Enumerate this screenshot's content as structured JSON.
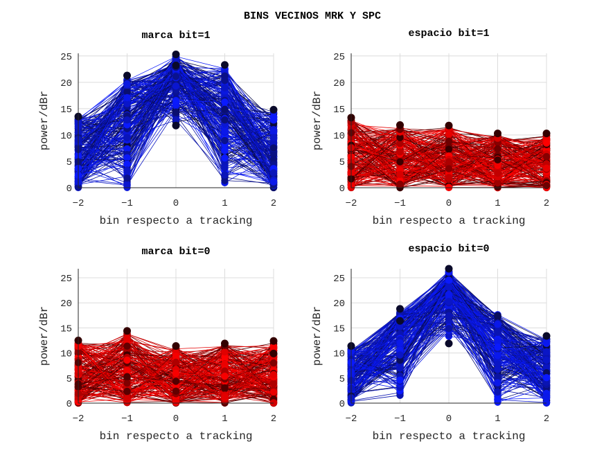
{
  "figure": {
    "suptitle": "BINS VECINOS MRK Y SPC"
  },
  "chart_data": [
    {
      "type": "line",
      "title": "marca bit=1",
      "xlabel": "bin respecto a tracking",
      "ylabel": "power/dBr",
      "x": [
        -2,
        -1,
        0,
        1,
        2
      ],
      "xticks": [
        "-2",
        "-1",
        "0",
        "1",
        "2"
      ],
      "ylim": [
        0,
        25.5
      ],
      "yticks": [
        "0",
        "5",
        "10",
        "15",
        "20",
        "25"
      ],
      "grid": true,
      "color_scheme": "blue",
      "colors": {
        "light": "#0a1aff",
        "dark": "#0a0a2a"
      },
      "trace_count": 220,
      "per_bin_range": [
        [
          0,
          13.5
        ],
        [
          0,
          21.3
        ],
        [
          11.8,
          25.3
        ],
        [
          0,
          23.3
        ],
        [
          0,
          14.8
        ]
      ],
      "highlight_points": [
        {
          "x": 0,
          "y": 25.3
        },
        {
          "x": 1,
          "y": 23.3
        },
        {
          "x": -1,
          "y": 21.3
        },
        {
          "x": 0,
          "y": 23.2
        },
        {
          "x": 0,
          "y": 11.8
        },
        {
          "x": 2,
          "y": 14.8
        },
        {
          "x": -2,
          "y": 13.5
        }
      ]
    },
    {
      "type": "line",
      "title": "espacio bit=1",
      "xlabel": "bin respecto a tracking",
      "ylabel": "power/dBr",
      "x": [
        -2,
        -1,
        0,
        1,
        2
      ],
      "xticks": [
        "-2",
        "-1",
        "0",
        "1",
        "2"
      ],
      "ylim": [
        0,
        25.5
      ],
      "yticks": [
        "0",
        "5",
        "10",
        "15",
        "20",
        "25"
      ],
      "grid": true,
      "color_scheme": "red",
      "colors": {
        "light": "#ff0000",
        "dark": "#330000"
      },
      "trace_count": 220,
      "per_bin_range": [
        [
          0,
          13.3
        ],
        [
          0,
          11.9
        ],
        [
          0,
          11.8
        ],
        [
          0,
          10.3
        ],
        [
          0,
          10.3
        ]
      ],
      "highlight_points": [
        {
          "x": -2,
          "y": 13.3
        },
        {
          "x": -1,
          "y": 11.9
        },
        {
          "x": 0,
          "y": 11.8
        },
        {
          "x": 1,
          "y": 10.3
        },
        {
          "x": 2,
          "y": 10.3
        }
      ]
    },
    {
      "type": "line",
      "title": "marca bit=0",
      "xlabel": "bin respecto a tracking",
      "ylabel": "power/dBr",
      "x": [
        -2,
        -1,
        0,
        1,
        2
      ],
      "xticks": [
        "-2",
        "-1",
        "0",
        "1",
        "2"
      ],
      "ylim": [
        0,
        26.8
      ],
      "yticks": [
        "0",
        "5",
        "10",
        "15",
        "20",
        "25"
      ],
      "grid": true,
      "color_scheme": "red",
      "colors": {
        "light": "#ff0000",
        "dark": "#330000"
      },
      "trace_count": 220,
      "per_bin_range": [
        [
          0,
          12.5
        ],
        [
          0,
          14.4
        ],
        [
          0,
          11.4
        ],
        [
          0,
          11.9
        ],
        [
          0,
          12.4
        ]
      ],
      "highlight_points": [
        {
          "x": -1,
          "y": 14.4
        },
        {
          "x": -2,
          "y": 12.5
        },
        {
          "x": 2,
          "y": 12.4
        },
        {
          "x": 1,
          "y": 11.9
        },
        {
          "x": 0,
          "y": 11.4
        },
        {
          "x": 2,
          "y": 9.9
        }
      ]
    },
    {
      "type": "line",
      "title": "espacio bit=0",
      "xlabel": "bin respecto a tracking",
      "ylabel": "power/dBr",
      "x": [
        -2,
        -1,
        0,
        1,
        2
      ],
      "xticks": [
        "-2",
        "-1",
        "0",
        "1",
        "2"
      ],
      "ylim": [
        0,
        26.8
      ],
      "yticks": [
        "0",
        "5",
        "10",
        "15",
        "20",
        "25"
      ],
      "grid": true,
      "color_scheme": "blue",
      "colors": {
        "light": "#0a1aff",
        "dark": "#0a0a2a"
      },
      "trace_count": 220,
      "per_bin_range": [
        [
          0,
          11.4
        ],
        [
          0,
          18.8
        ],
        [
          11.9,
          26.8
        ],
        [
          0,
          18.2
        ],
        [
          0,
          13.4
        ]
      ],
      "highlight_points": [
        {
          "x": 0,
          "y": 26.8
        },
        {
          "x": -1,
          "y": 18.8
        },
        {
          "x": -1,
          "y": 16.4
        },
        {
          "x": 0,
          "y": 11.9
        },
        {
          "x": 2,
          "y": 13.4
        },
        {
          "x": -2,
          "y": 11.4
        }
      ]
    }
  ]
}
